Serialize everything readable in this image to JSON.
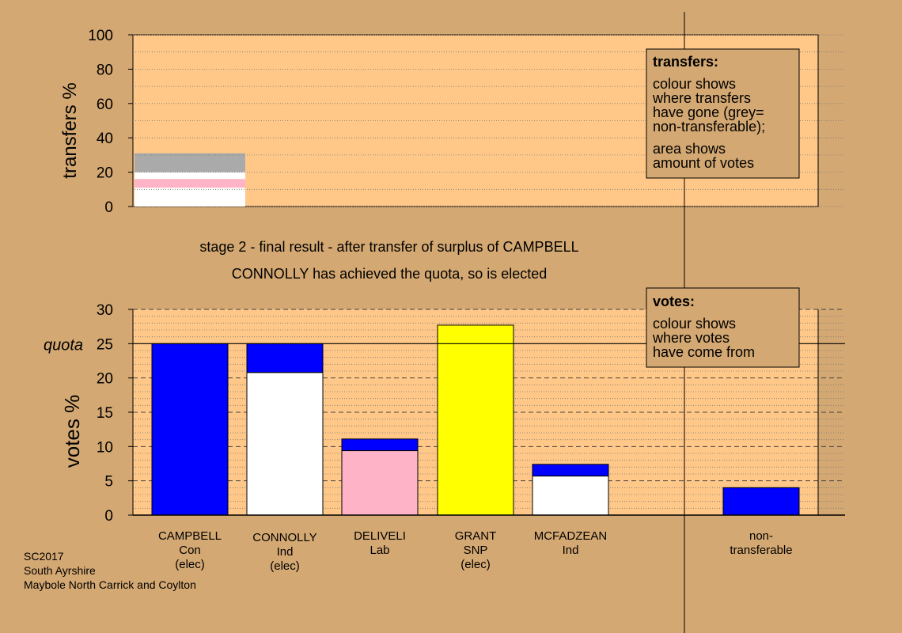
{
  "colors": {
    "page": "#d4a872",
    "plot": "#ffc888",
    "blue": "#0000ff",
    "white": "#ffffff",
    "pink": "#ffb3c6",
    "yellow": "#ffff00",
    "grey": "#aaaaaa"
  },
  "caption": {
    "line1": "stage 2 - final result - after transfer of surplus of CAMPBELL",
    "line2": "CONNOLLY has achieved the quota, so is elected"
  },
  "footer": {
    "line1": "SC2017",
    "line2": "South Ayrshire",
    "line3": "Maybole North Carrick and Coylton"
  },
  "chart_data": [
    {
      "type": "bar",
      "title": "transfers",
      "ylabel": "transfers %",
      "ylim": [
        0,
        100
      ],
      "yticks": [
        "0",
        "20",
        "40",
        "60",
        "80",
        "100"
      ],
      "grid": "dotted",
      "legend": {
        "placement": "top-right",
        "title": "transfers:",
        "lines1": [
          "colour shows",
          "where transfers",
          "have gone (grey=",
          "non-transferable);"
        ],
        "lines2": [
          "area shows",
          "amount of votes"
        ]
      },
      "stack": [
        {
          "color": "white",
          "value": 11
        },
        {
          "color": "pink",
          "value": 5
        },
        {
          "color": "white",
          "value": 4
        },
        {
          "color": "grey",
          "value": 11
        }
      ]
    },
    {
      "type": "bar",
      "title": "votes",
      "ylabel": "votes %",
      "ylim": [
        0,
        30
      ],
      "yticks": [
        "0",
        "5",
        "10",
        "15",
        "20",
        "25",
        "30"
      ],
      "quota": 25,
      "quota_label": "quota",
      "grid": "dashed",
      "legend": {
        "placement": "top-right",
        "title": "votes:",
        "lines1": [
          "colour shows",
          "where votes",
          "have come from"
        ]
      },
      "categories": [
        {
          "name": "CAMPBELL",
          "party": "Con",
          "status": "(elec)",
          "segments": [
            {
              "color": "blue",
              "value": 25
            }
          ]
        },
        {
          "name": "CONNOLLY",
          "party": "Ind",
          "status": "(elec)",
          "segments": [
            {
              "color": "white",
              "value": 20.8
            },
            {
              "color": "blue",
              "value": 4.2
            }
          ]
        },
        {
          "name": "DELIVELI",
          "party": "Lab",
          "status": "",
          "segments": [
            {
              "color": "pink",
              "value": 9.4
            },
            {
              "color": "blue",
              "value": 1.7
            }
          ]
        },
        {
          "name": "GRANT",
          "party": "SNP",
          "status": "(elec)",
          "segments": [
            {
              "color": "yellow",
              "value": 27.7
            }
          ]
        },
        {
          "name": "MCFADZEAN",
          "party": "Ind",
          "status": "",
          "segments": [
            {
              "color": "white",
              "value": 5.7
            },
            {
              "color": "blue",
              "value": 1.7
            }
          ]
        },
        {
          "name": "non-",
          "party": "transferable",
          "status": "",
          "segments": [
            {
              "color": "blue",
              "value": 4
            }
          ]
        }
      ]
    }
  ]
}
